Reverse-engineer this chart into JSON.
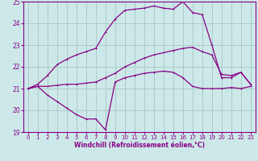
{
  "xlabel": "Windchill (Refroidissement éolien,°C)",
  "background_color": "#cde8e8",
  "grid_color": "#aacccc",
  "line_color": "#880088",
  "xlim": [
    -0.5,
    23.5
  ],
  "ylim": [
    19,
    25
  ],
  "yticks": [
    19,
    20,
    21,
    22,
    23,
    24,
    25
  ],
  "xticks": [
    0,
    1,
    2,
    3,
    4,
    5,
    6,
    7,
    8,
    9,
    10,
    11,
    12,
    13,
    14,
    15,
    16,
    17,
    18,
    19,
    20,
    21,
    22,
    23
  ],
  "line1_x": [
    0,
    1,
    2,
    3,
    4,
    5,
    6,
    7,
    8,
    9,
    10,
    11,
    12,
    13,
    14,
    15,
    16,
    17,
    18,
    19,
    20,
    21,
    22,
    23
  ],
  "line1_y": [
    21.0,
    21.1,
    20.7,
    20.4,
    20.1,
    19.8,
    19.6,
    19.6,
    19.1,
    21.3,
    21.5,
    21.6,
    21.7,
    21.75,
    21.8,
    21.75,
    21.5,
    21.1,
    21.0,
    21.0,
    21.0,
    21.05,
    21.0,
    21.1
  ],
  "line2_x": [
    0,
    1,
    2,
    3,
    4,
    5,
    6,
    7,
    8,
    9,
    10,
    11,
    12,
    13,
    14,
    15,
    16,
    17,
    18,
    19,
    20,
    21,
    22,
    23
  ],
  "line2_y": [
    21.0,
    21.1,
    21.1,
    21.15,
    21.2,
    21.2,
    21.25,
    21.3,
    21.5,
    21.7,
    22.0,
    22.2,
    22.4,
    22.55,
    22.65,
    22.75,
    22.85,
    22.9,
    22.7,
    22.55,
    21.65,
    21.6,
    21.75,
    21.2
  ],
  "line3_x": [
    0,
    1,
    2,
    3,
    4,
    5,
    6,
    7,
    8,
    9,
    10,
    11,
    12,
    13,
    14,
    15,
    16,
    17,
    18,
    19,
    20,
    21,
    22,
    23
  ],
  "line3_y": [
    21.0,
    21.2,
    21.6,
    22.1,
    22.35,
    22.55,
    22.7,
    22.85,
    23.6,
    24.2,
    24.6,
    24.65,
    24.7,
    24.8,
    24.7,
    24.65,
    25.0,
    24.5,
    24.4,
    23.0,
    21.5,
    21.5,
    21.75,
    21.2
  ]
}
